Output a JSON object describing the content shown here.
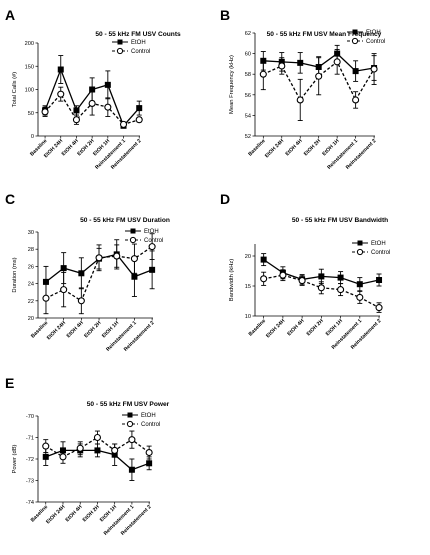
{
  "series_colors": {
    "etoh": "#000000",
    "control": "#000000"
  },
  "panels": [
    {
      "letter": "A",
      "chart_data": {
        "type": "line",
        "title": "50 - 55 kHz FM USV Counts",
        "ylabel": "Total Calls (#)",
        "ylim": [
          0,
          200
        ],
        "yticks": [
          0,
          50,
          100,
          150,
          200
        ],
        "categories": [
          "Baseline",
          "EtOH 24H",
          "EtOH 4H",
          "EtOH 2H",
          "EtOH 1H",
          "Reinstatement 1",
          "Reinstatement 2"
        ],
        "legend_position": "top-right",
        "series": [
          {
            "name": "EtOH",
            "marker": "filled-square",
            "line": "solid",
            "values": [
              55,
              143,
              55,
              100,
              110,
              22,
              60
            ],
            "errors": [
              10,
              30,
              10,
              25,
              30,
              5,
              15
            ]
          },
          {
            "name": "Control",
            "marker": "open-circle",
            "line": "dashed",
            "values": [
              52,
              90,
              35,
              70,
              62,
              25,
              35
            ],
            "errors": [
              10,
              15,
              10,
              25,
              20,
              5,
              5
            ]
          }
        ]
      }
    },
    {
      "letter": "B",
      "chart_data": {
        "type": "line",
        "title": "50 - 55 kHz FM USV Mean Frequency",
        "ylabel": "Mean Frequency (kHz)",
        "ylim": [
          52,
          62
        ],
        "yticks": [
          52,
          54,
          56,
          58,
          60,
          62
        ],
        "categories": [
          "Baseline",
          "EtOH 24H",
          "EtOH 4H",
          "EtOH 2H",
          "EtOH 1H",
          "Reinstatement 1",
          "Reinstatement 2"
        ],
        "legend_position": "top-right",
        "series": [
          {
            "name": "EtOH",
            "marker": "filled-square",
            "line": "solid",
            "values": [
              59.3,
              59.2,
              59.1,
              58.7,
              60.0,
              58.3,
              58.6
            ],
            "errors": [
              0.9,
              0.9,
              1.0,
              1.0,
              0.8,
              1.0,
              1.2
            ]
          },
          {
            "name": "Control",
            "marker": "open-circle",
            "line": "dashed",
            "values": [
              58.0,
              58.8,
              55.5,
              57.8,
              59.2,
              55.5,
              58.5
            ],
            "errors": [
              1.5,
              0.8,
              2.0,
              1.8,
              1.2,
              0.8,
              1.5
            ]
          }
        ]
      }
    },
    {
      "letter": "C",
      "chart_data": {
        "type": "line",
        "title": "50 - 55 kHz FM USV Duration",
        "ylabel": "Duration (ms)",
        "ylim": [
          20,
          30
        ],
        "yticks": [
          20,
          22,
          24,
          26,
          28,
          30
        ],
        "categories": [
          "Baseline",
          "EtOH 24H",
          "EtOH 4H",
          "EtOH 2H",
          "EtOH 1H",
          "Reinstatement 1",
          "Reinstatement 2"
        ],
        "legend_position": "top-right",
        "series": [
          {
            "name": "EtOH",
            "marker": "filled-square",
            "line": "solid",
            "values": [
              24.2,
              25.8,
              25.2,
              26.9,
              27.4,
              24.8,
              25.6
            ],
            "errors": [
              1.8,
              1.8,
              1.8,
              1.2,
              1.7,
              2.3,
              2.2
            ]
          },
          {
            "name": "Control",
            "marker": "open-circle",
            "line": "dashed",
            "values": [
              22.3,
              23.3,
              22.0,
              27.0,
              27.2,
              26.9,
              28.3
            ],
            "errors": [
              1.8,
              2.0,
              1.5,
              1.5,
              1.3,
              1.7,
              1.5
            ]
          }
        ]
      }
    },
    {
      "letter": "D",
      "chart_data": {
        "type": "line",
        "title": "50 - 55 kHz FM USV Bandwidth",
        "ylabel": "Bandwidth (kHz)",
        "ylim": [
          10,
          22
        ],
        "yticks": [
          10,
          15,
          20
        ],
        "categories": [
          "Baseline",
          "EtOH 24H",
          "EtOH 4H",
          "EtOH 2H",
          "EtOH 1H",
          "Reinstatement 1",
          "Reinstatement 2"
        ],
        "legend_position": "top-right",
        "series": [
          {
            "name": "EtOH",
            "marker": "filled-square",
            "line": "solid",
            "values": [
              19.4,
              17.2,
              16.1,
              16.6,
              16.4,
              15.3,
              16.0
            ],
            "errors": [
              1.0,
              1.0,
              0.8,
              1.2,
              1.0,
              1.1,
              1.0
            ]
          },
          {
            "name": "Control",
            "marker": "open-circle",
            "line": "dashed",
            "values": [
              16.2,
              16.8,
              15.9,
              14.7,
              14.4,
              13.1,
              11.4
            ],
            "errors": [
              1.1,
              0.9,
              0.8,
              1.0,
              1.0,
              1.0,
              0.8
            ]
          }
        ]
      }
    },
    {
      "letter": "E",
      "chart_data": {
        "type": "line",
        "title": "50 - 55 kHz FM USV Power",
        "ylabel": "Power (dB)",
        "ylim": [
          -74,
          -70
        ],
        "yticks": [
          -70,
          -71,
          -72,
          -73,
          -74
        ],
        "categories": [
          "Baseline",
          "EtOH 24H",
          "EtOH 4H",
          "EtOH 2H",
          "EtOH 1H",
          "Reinstatement 1",
          "Reinstatement 2"
        ],
        "legend_position": "top-right",
        "series": [
          {
            "name": "EtOH",
            "marker": "filled-square",
            "line": "solid",
            "values": [
              -71.9,
              -71.6,
              -71.6,
              -71.6,
              -71.8,
              -72.5,
              -72.2
            ],
            "errors": [
              0.4,
              0.4,
              0.3,
              0.3,
              0.5,
              0.5,
              0.3
            ]
          },
          {
            "name": "Control",
            "marker": "open-circle",
            "line": "dashed",
            "values": [
              -71.4,
              -71.9,
              -71.5,
              -71.0,
              -71.6,
              -71.1,
              -71.7
            ],
            "errors": [
              0.3,
              0.3,
              0.3,
              0.3,
              0.3,
              0.4,
              0.3
            ]
          }
        ]
      }
    }
  ]
}
